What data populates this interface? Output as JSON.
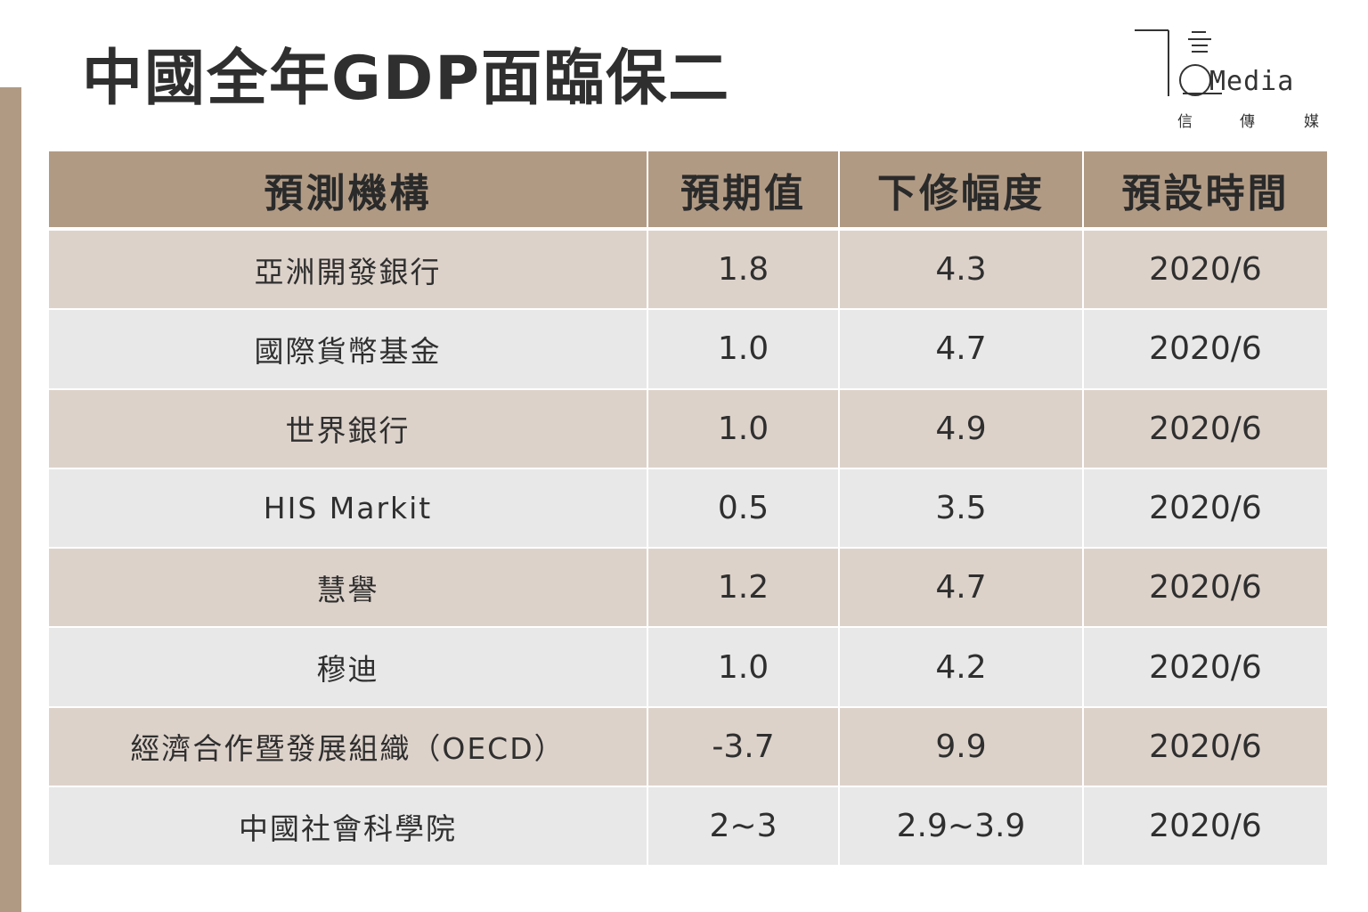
{
  "title": "中國全年GDP面臨保二",
  "logo": {
    "word": "Media",
    "sub_chars": [
      "信",
      "傳",
      "媒"
    ]
  },
  "colors": {
    "header_bg": "#b19a84",
    "row_odd": "#ddd2ca",
    "row_even": "#e8e8e8",
    "accent_bar": "#b19a84"
  },
  "table": {
    "headers": [
      "預測機構",
      "預期值",
      "下修幅度",
      "預設時間"
    ],
    "rows": [
      [
        "亞洲開發銀行",
        "1.8",
        "4.3",
        "2020/6"
      ],
      [
        "國際貨幣基金",
        "1.0",
        "4.7",
        "2020/6"
      ],
      [
        "世界銀行",
        "1.0",
        "4.9",
        "2020/6"
      ],
      [
        "HIS Markit",
        "0.5",
        "3.5",
        "2020/6"
      ],
      [
        "慧譽",
        "1.2",
        "4.7",
        "2020/6"
      ],
      [
        "穆迪",
        "1.0",
        "4.2",
        "2020/6"
      ],
      [
        "經濟合作暨發展組織（OECD）",
        "-3.7",
        "9.9",
        "2020/6"
      ],
      [
        "中國社會科學院",
        "2~3",
        "2.9~3.9",
        "2020/6"
      ]
    ]
  }
}
